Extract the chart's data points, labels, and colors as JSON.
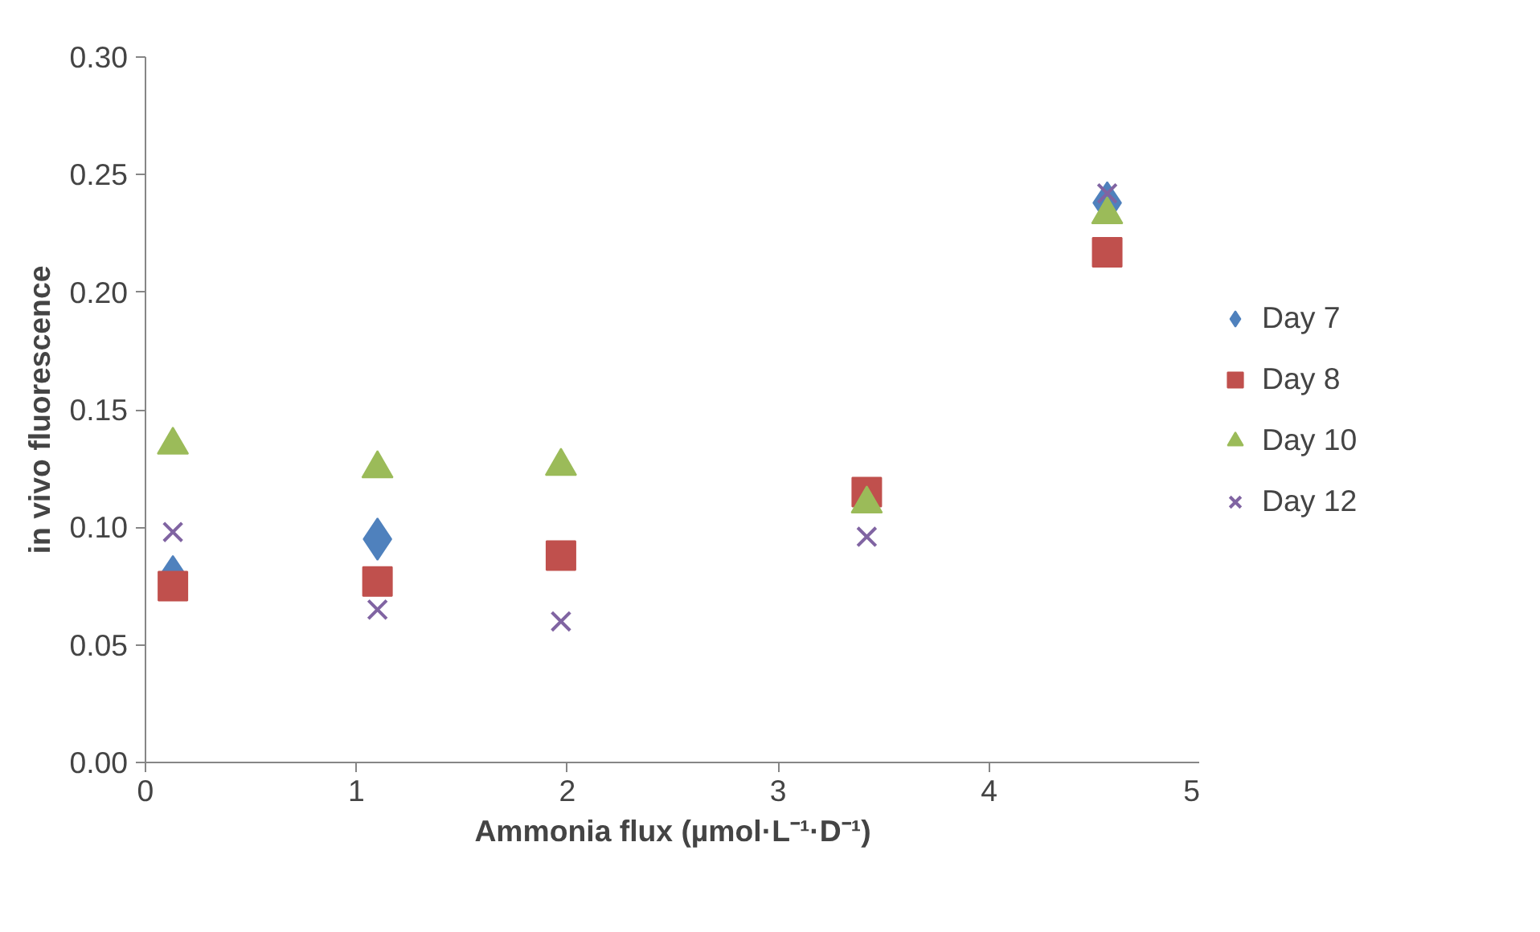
{
  "chart_data": {
    "type": "scatter",
    "xlabel": "Ammonia flux (µmol·L⁻¹·D⁻¹)",
    "ylabel": "in vivo fluorescence",
    "x": [
      0.13,
      1.1,
      1.97,
      3.42,
      4.56
    ],
    "series": [
      {
        "name": "Day 7",
        "color": "#4f81bd",
        "marker": "diamond",
        "values": [
          0.079,
          0.095,
          null,
          null,
          0.238
        ]
      },
      {
        "name": "Day 8",
        "color": "#c0504d",
        "marker": "square",
        "values": [
          0.075,
          0.077,
          0.088,
          0.115,
          0.217
        ]
      },
      {
        "name": "Day 10",
        "color": "#9bbb59",
        "marker": "triangle",
        "values": [
          0.135,
          0.125,
          0.126,
          0.11,
          0.233
        ]
      },
      {
        "name": "Day 12",
        "color": "#8064a2",
        "marker": "cross",
        "values": [
          0.098,
          0.065,
          0.06,
          0.096,
          0.242
        ]
      }
    ],
    "xlim": [
      0,
      5
    ],
    "xticks": [
      0,
      1,
      2,
      3,
      4,
      5
    ],
    "ylim": [
      0,
      0.3
    ],
    "yticks": [
      {
        "value": 0,
        "label": "0.00"
      },
      {
        "value": 0.05,
        "label": "0.05"
      },
      {
        "value": 0.1,
        "label": "0.10"
      },
      {
        "value": 0.15,
        "label": "0.15"
      },
      {
        "value": 0.2,
        "label": "0.20"
      },
      {
        "value": 0.25,
        "label": "0.25"
      },
      {
        "value": 0.3,
        "label": "0.30"
      }
    ],
    "grid": false,
    "legend": "right"
  }
}
